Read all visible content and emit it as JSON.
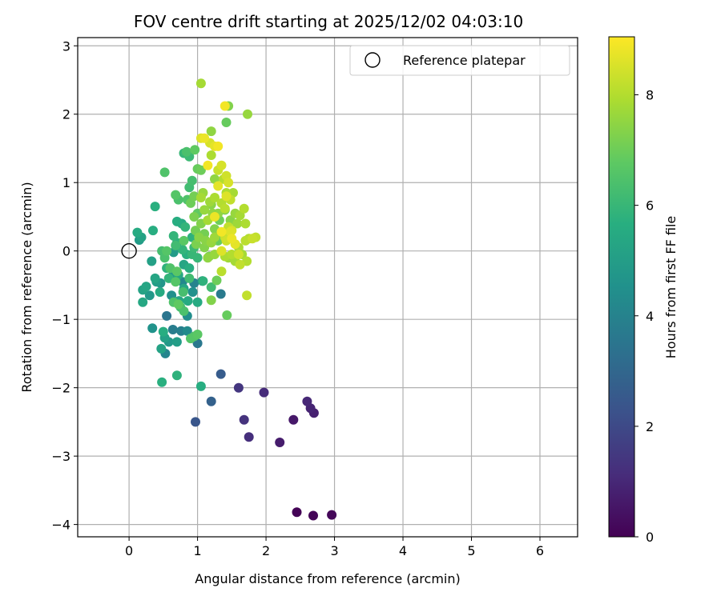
{
  "chart_data": {
    "type": "scatter",
    "title": "FOV centre drift starting at 2025/12/02 04:03:10",
    "xlabel": "Angular distance from reference (arcmin)",
    "ylabel": "Rotation from reference (arcmin)",
    "xlim": [
      -0.75,
      6.55
    ],
    "ylim": [
      -4.18,
      3.12
    ],
    "x_ticks": [
      0,
      1,
      2,
      3,
      4,
      5,
      6
    ],
    "y_ticks": [
      -4,
      -3,
      -2,
      -1,
      0,
      1,
      2,
      3
    ],
    "grid": true,
    "legend": {
      "position": "top-right",
      "entries": [
        "Reference platepar"
      ]
    },
    "reference_point": {
      "x": 0,
      "y": 0,
      "label": "Reference platepar"
    },
    "colorbar": {
      "label": "Hours from first FF file",
      "min": 0,
      "max": 9.05,
      "ticks": [
        0,
        2,
        4,
        6,
        8
      ],
      "colormap": "viridis"
    },
    "points_fields": [
      "x",
      "y",
      "hours"
    ],
    "points": [
      [
        2.45,
        -3.82,
        0.05
      ],
      [
        2.69,
        -3.87,
        0.1
      ],
      [
        2.96,
        -3.86,
        0.15
      ],
      [
        2.4,
        -2.47,
        0.6
      ],
      [
        2.2,
        -2.8,
        0.7
      ],
      [
        2.7,
        -2.37,
        0.8
      ],
      [
        2.65,
        -2.3,
        0.9
      ],
      [
        2.6,
        -2.2,
        1.0
      ],
      [
        1.97,
        -2.07,
        1.1
      ],
      [
        1.75,
        -2.72,
        1.2
      ],
      [
        1.68,
        -2.47,
        1.3
      ],
      [
        1.6,
        -2.0,
        1.4
      ],
      [
        0.97,
        -2.5,
        2.4
      ],
      [
        1.34,
        -1.8,
        2.6
      ],
      [
        1.2,
        -2.2,
        2.8
      ],
      [
        1.34,
        -0.63,
        3.7
      ],
      [
        1.0,
        -1.35,
        3.6
      ],
      [
        0.55,
        -0.95,
        3.5
      ],
      [
        0.64,
        -1.15,
        3.8
      ],
      [
        0.76,
        -1.17,
        3.9
      ],
      [
        0.53,
        -1.5,
        4.1
      ],
      [
        0.85,
        -1.17,
        4.3
      ],
      [
        0.85,
        -0.95,
        4.4
      ],
      [
        0.93,
        -0.6,
        4.5
      ],
      [
        1.07,
        -0.44,
        4.6
      ],
      [
        0.3,
        -0.65,
        4.8
      ],
      [
        0.46,
        -0.47,
        4.7
      ],
      [
        0.65,
        -0.02,
        4.9
      ],
      [
        0.78,
        -0.45,
        4.2
      ],
      [
        0.34,
        -1.13,
        4.6
      ],
      [
        0.58,
        -1.33,
        4.8
      ],
      [
        0.95,
        -0.47,
        4.0
      ],
      [
        0.7,
        -1.33,
        5.0
      ],
      [
        0.52,
        -1.27,
        5.1
      ],
      [
        0.47,
        -1.43,
        5.2
      ],
      [
        0.8,
        -0.55,
        5.3
      ],
      [
        0.62,
        -0.65,
        4.5
      ],
      [
        0.73,
        -0.73,
        5.4
      ],
      [
        0.86,
        -0.73,
        5.5
      ],
      [
        0.2,
        -0.57,
        5.2
      ],
      [
        0.25,
        -0.52,
        5.3
      ],
      [
        0.2,
        -0.75,
        5.4
      ],
      [
        0.45,
        -0.6,
        5.5
      ],
      [
        0.38,
        -0.4,
        5.3
      ],
      [
        0.4,
        -0.45,
        5.0
      ],
      [
        0.33,
        -0.15,
        5.1
      ],
      [
        0.15,
        0.16,
        4.9
      ],
      [
        0.18,
        0.2,
        5.2
      ],
      [
        0.12,
        0.27,
        5.5
      ],
      [
        0.35,
        0.3,
        5.6
      ],
      [
        0.38,
        0.65,
        5.7
      ],
      [
        0.62,
        -0.38,
        4.9
      ],
      [
        0.5,
        -1.18,
        5.6
      ],
      [
        0.48,
        -1.92,
        5.7
      ],
      [
        0.7,
        -1.82,
        5.8
      ],
      [
        0.55,
        -0.25,
        5.8
      ],
      [
        0.58,
        -0.4,
        5.9
      ],
      [
        0.65,
        0.22,
        5.9
      ],
      [
        0.7,
        0.12,
        5.8
      ],
      [
        0.7,
        0.43,
        5.6
      ],
      [
        0.77,
        0.4,
        5.5
      ],
      [
        0.84,
        -0.05,
        5.7
      ],
      [
        0.82,
        0.35,
        5.9
      ],
      [
        0.72,
        -0.35,
        5.4
      ],
      [
        0.8,
        -0.2,
        5.3
      ],
      [
        0.88,
        -0.25,
        5.6
      ],
      [
        0.92,
        0.2,
        5.8
      ],
      [
        0.78,
        0.02,
        5.9
      ],
      [
        0.92,
        -0.05,
        6.0
      ],
      [
        1.0,
        -0.1,
        6.0
      ],
      [
        0.95,
        0.05,
        6.1
      ],
      [
        0.68,
        0.08,
        6.2
      ],
      [
        0.88,
        -0.4,
        6.2
      ],
      [
        0.79,
        -0.6,
        6.3
      ],
      [
        0.75,
        -0.82,
        6.3
      ],
      [
        0.8,
        -0.88,
        6.4
      ],
      [
        0.65,
        -0.75,
        6.5
      ],
      [
        0.95,
        -1.25,
        6.5
      ],
      [
        0.9,
        -1.28,
        6.6
      ],
      [
        1.0,
        -1.22,
        6.7
      ],
      [
        0.72,
        -0.78,
        6.8
      ],
      [
        0.68,
        -0.45,
        6.6
      ],
      [
        0.7,
        -0.3,
        6.7
      ],
      [
        0.6,
        -0.25,
        6.5
      ],
      [
        0.52,
        -0.1,
        6.4
      ],
      [
        0.55,
        0.0,
        6.6
      ],
      [
        0.48,
        0.0,
        6.3
      ],
      [
        0.8,
        0.15,
        6.7
      ],
      [
        0.85,
        0.75,
        6.5
      ],
      [
        0.72,
        0.75,
        6.4
      ],
      [
        0.68,
        0.82,
        6.6
      ],
      [
        0.88,
        0.93,
        6.2
      ],
      [
        0.92,
        1.03,
        6.3
      ],
      [
        0.88,
        1.38,
        6.1
      ],
      [
        0.8,
        1.43,
        6.0
      ],
      [
        0.84,
        1.45,
        6.4
      ],
      [
        0.52,
        1.15,
        6.5
      ],
      [
        0.96,
        1.48,
        6.8
      ],
      [
        1.0,
        1.2,
        6.9
      ],
      [
        1.05,
        1.18,
        7.0
      ],
      [
        0.95,
        0.8,
        7.1
      ],
      [
        0.9,
        0.7,
        7.0
      ],
      [
        1.0,
        0.55,
        6.8
      ],
      [
        0.95,
        0.5,
        7.2
      ],
      [
        1.05,
        0.4,
        7.3
      ],
      [
        0.97,
        0.3,
        7.1
      ],
      [
        1.02,
        0.2,
        7.4
      ],
      [
        0.98,
        0.1,
        7.2
      ],
      [
        1.1,
        0.05,
        7.3
      ],
      [
        1.15,
        -0.1,
        7.5
      ],
      [
        1.25,
        -0.05,
        7.6
      ],
      [
        1.12,
        0.15,
        7.4
      ],
      [
        1.2,
        0.12,
        7.6
      ],
      [
        1.25,
        0.2,
        7.7
      ],
      [
        1.15,
        0.45,
        7.8
      ],
      [
        1.22,
        0.55,
        7.5
      ],
      [
        1.1,
        0.6,
        7.6
      ],
      [
        1.18,
        0.72,
        7.7
      ],
      [
        1.25,
        0.78,
        7.9
      ],
      [
        1.05,
        0.78,
        7.8
      ],
      [
        1.08,
        0.85,
        7.6
      ],
      [
        1.35,
        0.7,
        8.0
      ],
      [
        1.4,
        0.62,
        8.1
      ],
      [
        1.48,
        0.75,
        8.2
      ],
      [
        1.42,
        0.85,
        7.9
      ],
      [
        1.52,
        0.85,
        7.8
      ],
      [
        1.38,
        1.05,
        8.0
      ],
      [
        1.25,
        1.05,
        7.5
      ],
      [
        1.3,
        1.18,
        8.3
      ],
      [
        1.42,
        1.1,
        8.4
      ],
      [
        1.35,
        1.25,
        8.5
      ],
      [
        1.42,
        0.8,
        8.6
      ],
      [
        1.3,
        0.95,
        8.7
      ],
      [
        1.45,
        1.0,
        8.5
      ],
      [
        1.48,
        0.28,
        8.6
      ],
      [
        1.5,
        0.18,
        8.8
      ],
      [
        1.55,
        0.1,
        8.7
      ],
      [
        1.6,
        -0.05,
        8.4
      ],
      [
        1.4,
        0.2,
        8.3
      ],
      [
        1.35,
        0.28,
        8.9
      ],
      [
        1.45,
        0.35,
        8.2
      ],
      [
        1.5,
        -0.05,
        8.0
      ],
      [
        1.55,
        -0.15,
        7.8
      ],
      [
        1.4,
        -0.08,
        7.9
      ],
      [
        1.35,
        -0.3,
        8.1
      ],
      [
        1.45,
        -0.1,
        7.7
      ],
      [
        1.65,
        -0.05,
        7.8
      ],
      [
        1.6,
        0.05,
        7.9
      ],
      [
        1.72,
        -0.15,
        8.0
      ],
      [
        1.62,
        -0.2,
        8.2
      ],
      [
        1.7,
        0.15,
        8.1
      ],
      [
        1.75,
        0.18,
        8.0
      ],
      [
        1.8,
        0.18,
        8.3
      ],
      [
        1.85,
        0.2,
        8.2
      ],
      [
        1.7,
        0.4,
        7.9
      ],
      [
        1.62,
        0.52,
        7.8
      ],
      [
        1.68,
        0.62,
        8.0
      ],
      [
        1.55,
        0.55,
        7.6
      ],
      [
        1.48,
        0.45,
        7.4
      ],
      [
        1.58,
        0.4,
        7.7
      ],
      [
        1.72,
        -0.65,
        8.2
      ],
      [
        1.43,
        -0.94,
        6.9
      ],
      [
        1.2,
        -0.72,
        7.3
      ],
      [
        1.2,
        -0.53,
        6.2
      ],
      [
        1.08,
        -0.44,
        5.8
      ],
      [
        1.0,
        -0.75,
        5.5
      ],
      [
        1.28,
        -0.43,
        7.0
      ],
      [
        1.05,
        -1.98,
        5.6
      ],
      [
        1.17,
        -0.08,
        7.2
      ],
      [
        1.3,
        0.15,
        6.9
      ],
      [
        1.1,
        0.25,
        7.1
      ],
      [
        1.25,
        0.32,
        7.3
      ],
      [
        1.32,
        0.45,
        7.0
      ],
      [
        1.2,
        0.68,
        7.4
      ],
      [
        1.4,
        0.6,
        7.2
      ],
      [
        1.3,
        0.55,
        7.5
      ],
      [
        1.25,
        0.5,
        8.8
      ],
      [
        1.15,
        1.25,
        8.9
      ],
      [
        1.05,
        1.65,
        8.6
      ],
      [
        1.1,
        1.65,
        8.8
      ],
      [
        1.25,
        1.53,
        8.7
      ],
      [
        1.3,
        1.53,
        8.9
      ],
      [
        1.18,
        1.58,
        8.5
      ],
      [
        1.2,
        1.75,
        7.5
      ],
      [
        1.05,
        2.45,
        7.8
      ],
      [
        1.4,
        2.12,
        8.9
      ],
      [
        1.45,
        2.12,
        7.3
      ],
      [
        1.42,
        1.88,
        6.9
      ],
      [
        1.73,
        2.0,
        7.6
      ],
      [
        1.2,
        1.4,
        7.9
      ],
      [
        1.5,
        0.3,
        8.5
      ],
      [
        1.42,
        0.15,
        8.4
      ],
      [
        1.35,
        0.0,
        8.6
      ]
    ]
  }
}
